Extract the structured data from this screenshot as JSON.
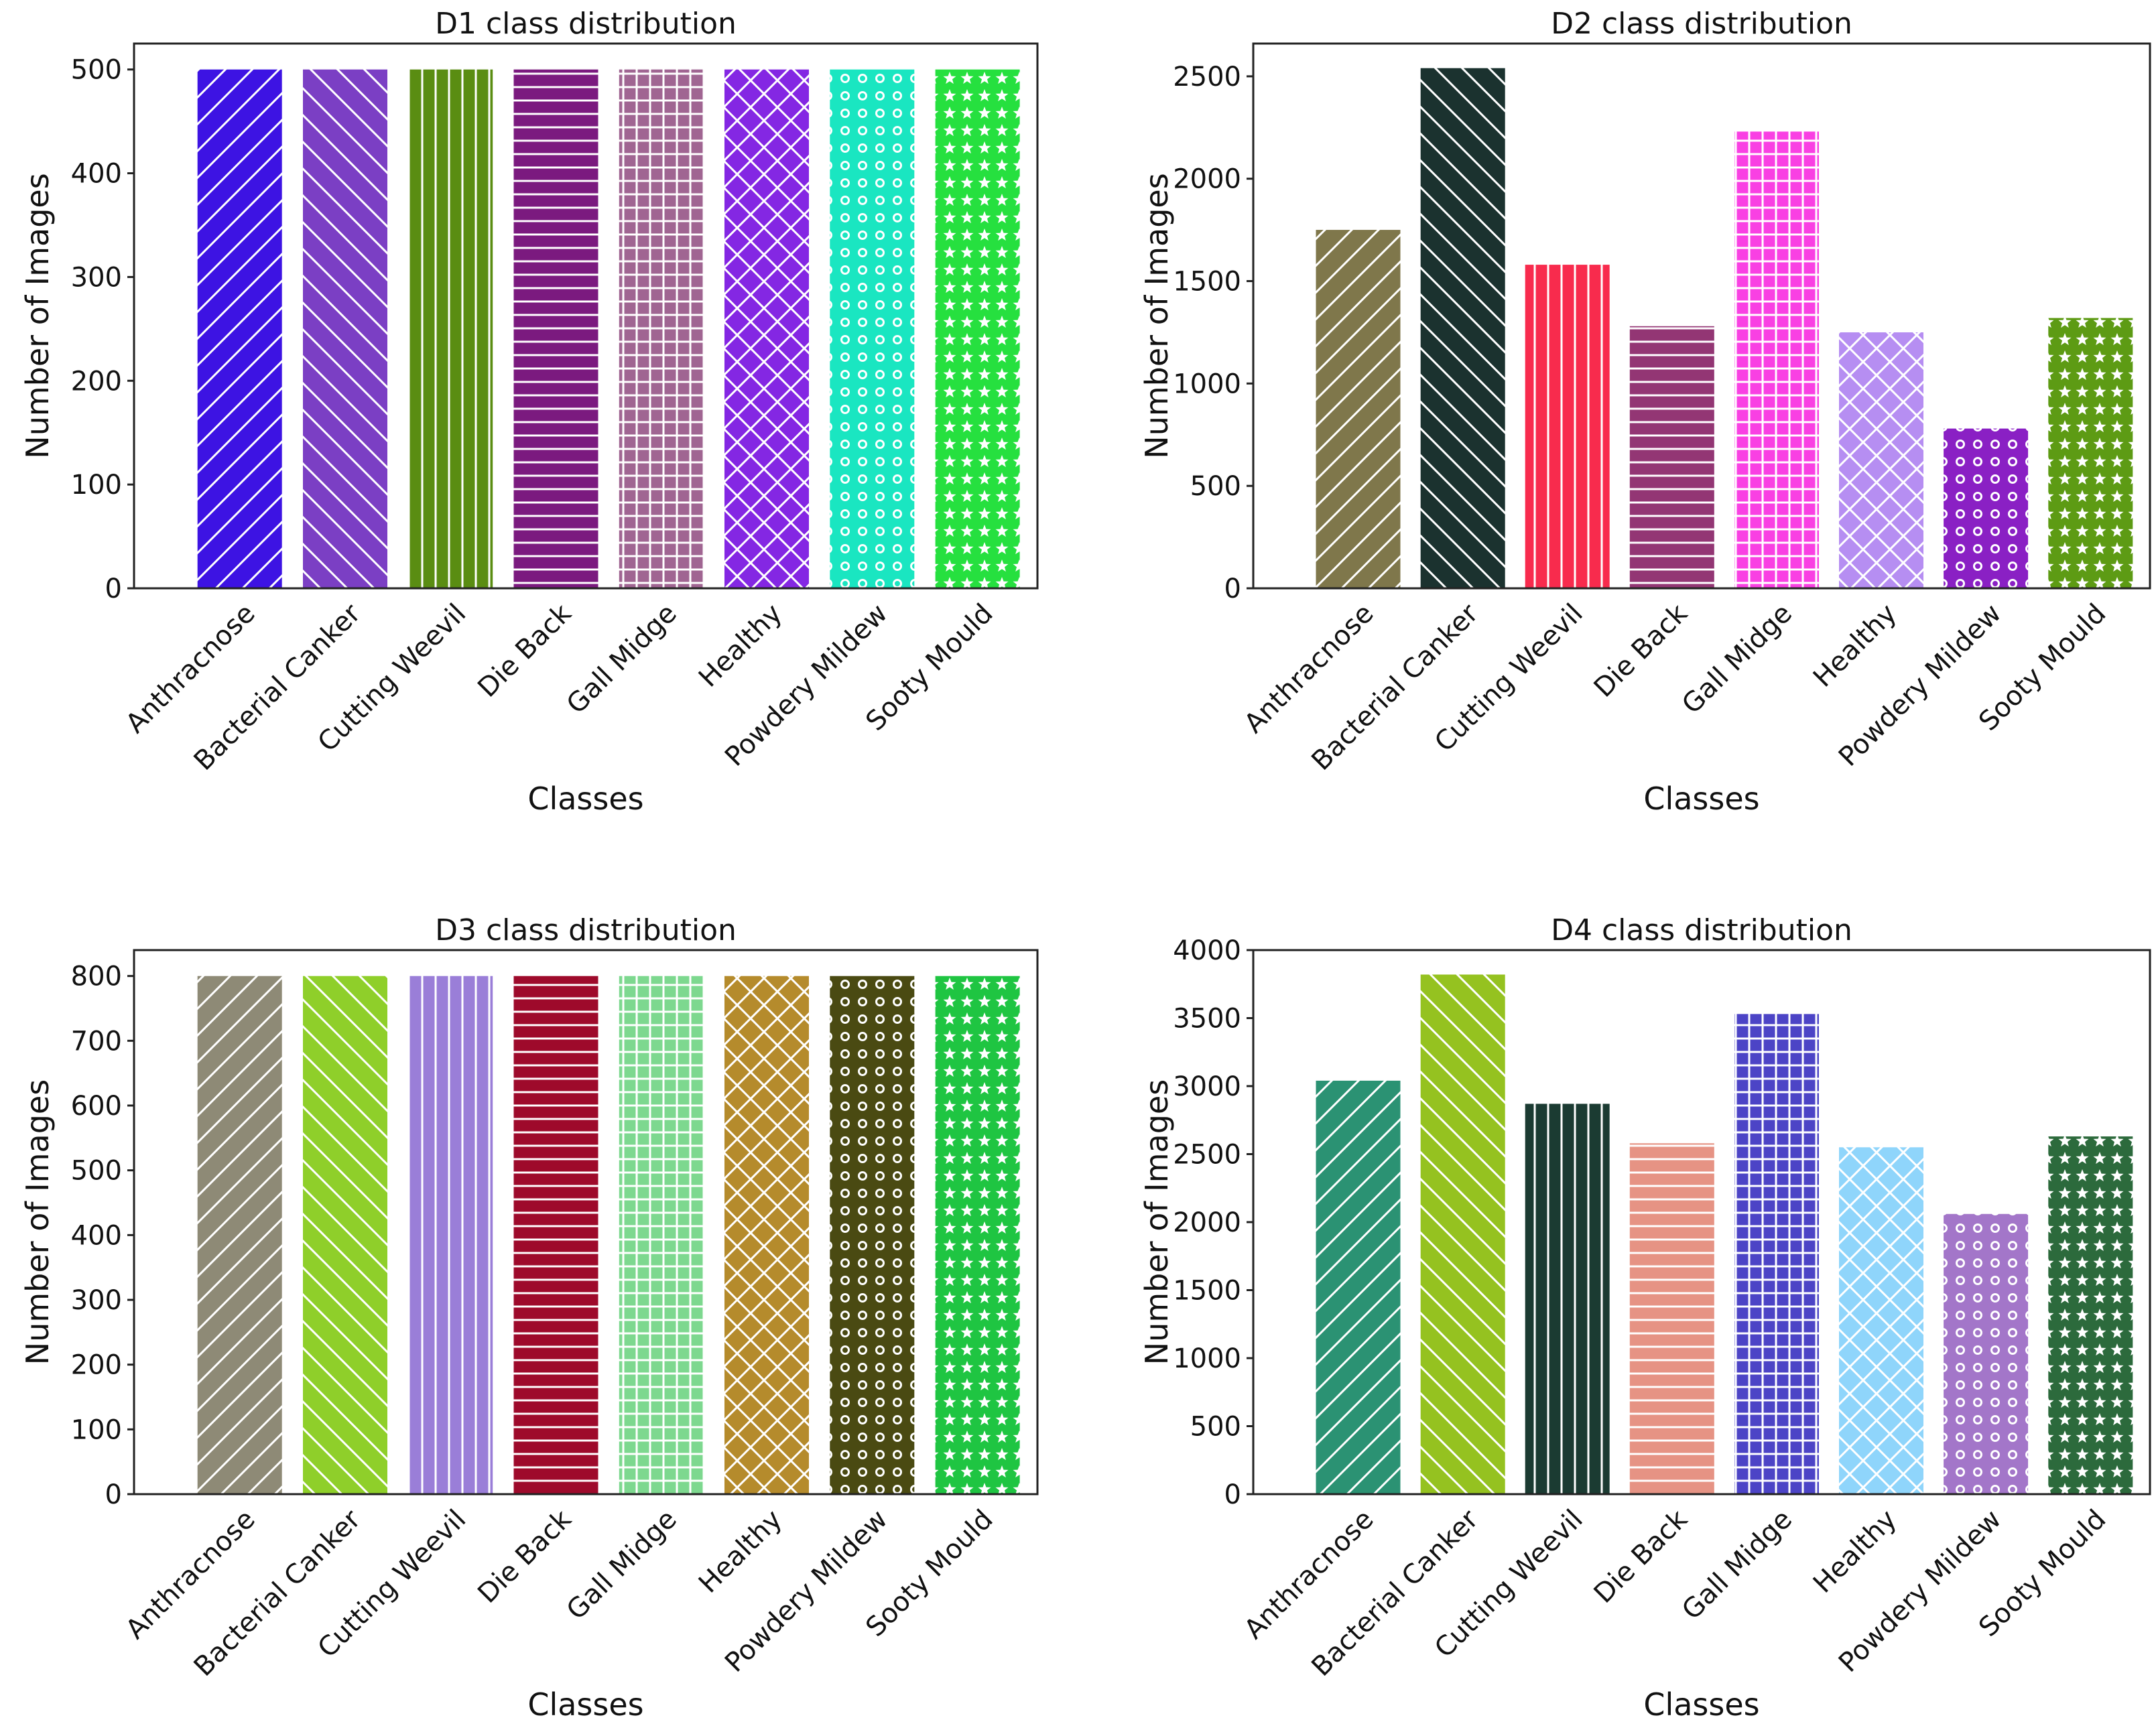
{
  "chart_data": [
    {
      "type": "bar",
      "title": "D1 class distribution",
      "xlabel": "Classes",
      "ylabel": "Number of Images",
      "ylim": [
        0,
        525
      ],
      "yticks": [
        0,
        100,
        200,
        300,
        400,
        500
      ],
      "categories": [
        "Anthracnose",
        "Bacterial Canker",
        "Cutting Weevil",
        "Die Back",
        "Gall Midge",
        "Healthy",
        "Powdery Mildew",
        "Sooty Mould"
      ],
      "values": [
        500,
        500,
        500,
        500,
        500,
        500,
        500,
        500
      ],
      "colors": [
        "#3d13e3",
        "#7b3fc4",
        "#5a8d12",
        "#7b1a7f",
        "#a06592",
        "#8427e3",
        "#1ae6c1",
        "#26e03f"
      ],
      "hatches": [
        "fdiag",
        "bdiag",
        "vert",
        "horiz",
        "grid",
        "cross",
        "circle",
        "star"
      ],
      "grid": false
    },
    {
      "type": "bar",
      "title": "D2 class distribution",
      "xlabel": "Classes",
      "ylabel": "Number of Images",
      "ylim": [
        0,
        2660
      ],
      "yticks": [
        0,
        500,
        1000,
        1500,
        2000,
        2500
      ],
      "categories": [
        "Anthracnose",
        "Bacterial Canker",
        "Cutting Weevil",
        "Die Back",
        "Gall Midge",
        "Healthy",
        "Powdery Mildew",
        "Sooty Mould"
      ],
      "values": [
        1750,
        2540,
        1580,
        1280,
        2230,
        1250,
        780,
        1320
      ],
      "colors": [
        "#7f774b",
        "#1b322f",
        "#f82b4d",
        "#933674",
        "#f940e3",
        "#b68ef2",
        "#8a20c4",
        "#5d9b14"
      ],
      "hatches": [
        "fdiag",
        "bdiag",
        "vert",
        "horiz",
        "grid",
        "cross",
        "circle",
        "star"
      ],
      "grid": false
    },
    {
      "type": "bar",
      "title": "D3 class distribution",
      "xlabel": "Classes",
      "ylabel": "Number of Images",
      "ylim": [
        0,
        840
      ],
      "yticks": [
        0,
        100,
        200,
        300,
        400,
        500,
        600,
        700,
        800
      ],
      "categories": [
        "Anthracnose",
        "Bacterial Canker",
        "Cutting Weevil",
        "Die Back",
        "Gall Midge",
        "Healthy",
        "Powdery Mildew",
        "Sooty Mould"
      ],
      "values": [
        800,
        800,
        800,
        800,
        800,
        800,
        800,
        800
      ],
      "colors": [
        "#8e8a76",
        "#8fcf2a",
        "#9a7ed8",
        "#9e0a2b",
        "#7dd88f",
        "#b58b2c",
        "#4a4a12",
        "#1fc542"
      ],
      "hatches": [
        "fdiag",
        "bdiag",
        "vert",
        "horiz",
        "grid",
        "cross",
        "circle",
        "star"
      ],
      "grid": false
    },
    {
      "type": "bar",
      "title": "D4 class distribution",
      "xlabel": "Classes",
      "ylabel": "Number of Images",
      "ylim": [
        0,
        4000
      ],
      "yticks": [
        0,
        500,
        1000,
        1500,
        2000,
        2500,
        3000,
        3500,
        4000
      ],
      "categories": [
        "Anthracnose",
        "Bacterial Canker",
        "Cutting Weevil",
        "Die Back",
        "Gall Midge",
        "Healthy",
        "Powdery Mildew",
        "Sooty Mould"
      ],
      "values": [
        3040,
        3820,
        2870,
        2580,
        3530,
        2550,
        2060,
        2630
      ],
      "colors": [
        "#2b9273",
        "#95c220",
        "#1b3b32",
        "#e69384",
        "#4c44c6",
        "#8fd5fb",
        "#a376c9",
        "#2c6a3c"
      ],
      "hatches": [
        "fdiag",
        "bdiag",
        "vert",
        "horiz",
        "grid",
        "cross",
        "circle",
        "star"
      ],
      "grid": false
    }
  ]
}
